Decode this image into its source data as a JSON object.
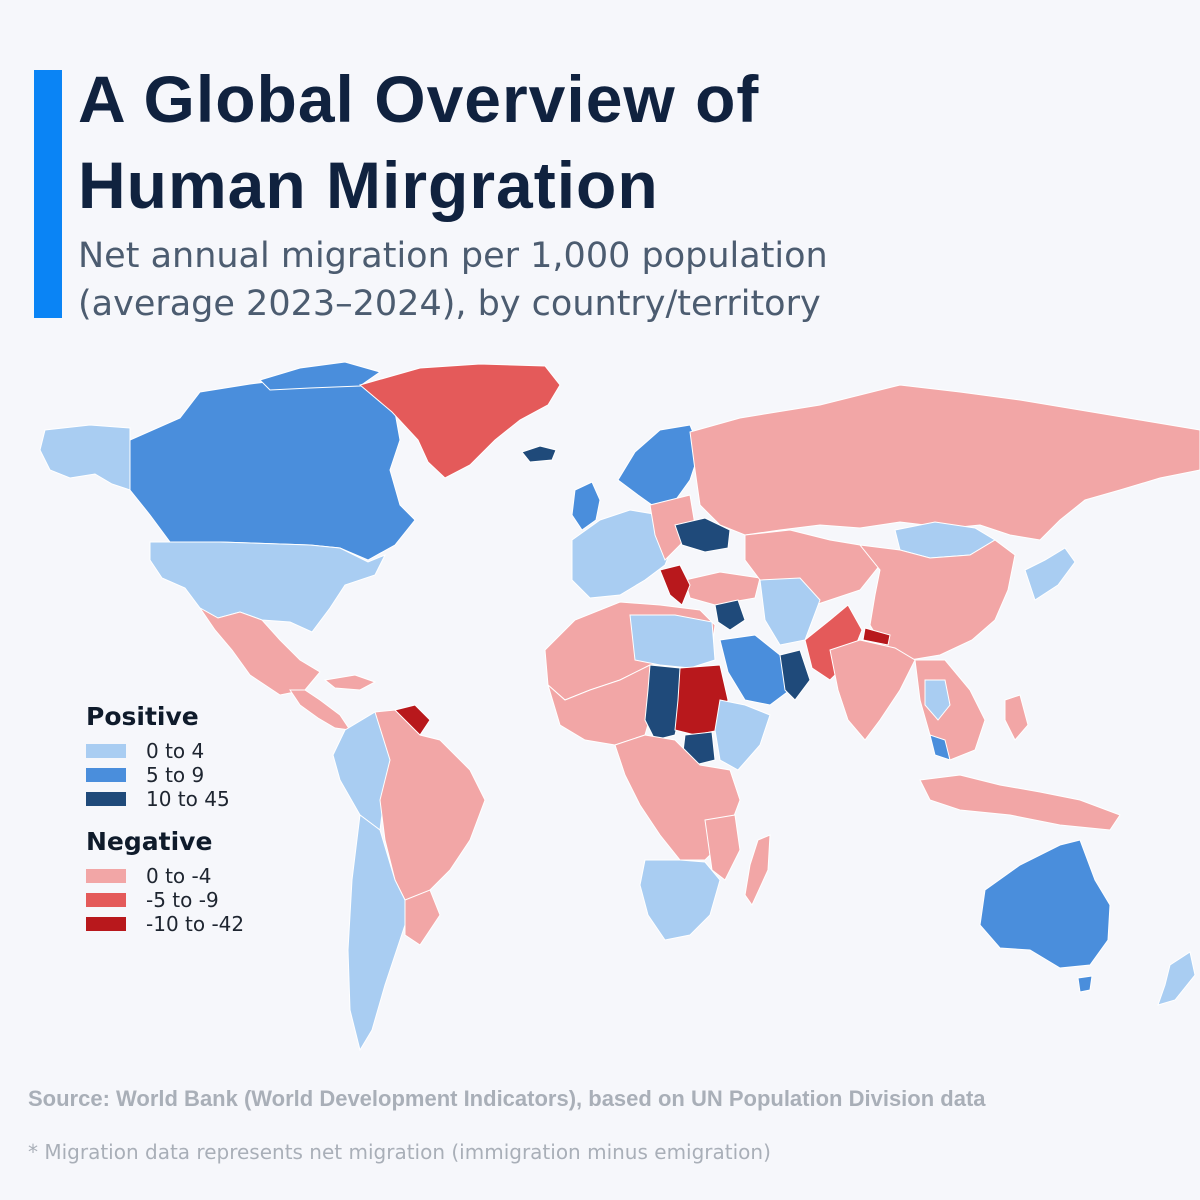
{
  "header": {
    "title_line1": "A Global Overview of",
    "title_line2": "Human Mirgration",
    "subtitle_line1": "Net annual migration per 1,000 population",
    "subtitle_line2": "(average 2023–2024), by country/territory"
  },
  "colors": {
    "accent": "#0a84f5",
    "pos_low": "#a9cdf2",
    "pos_mid": "#4a8edc",
    "pos_high": "#1f4a7a",
    "neg_low": "#f2a6a6",
    "neg_mid": "#e45a5a",
    "neg_high": "#b8181c"
  },
  "legend": {
    "positive_heading": "Positive",
    "positive": [
      {
        "label": "0 to 4",
        "color": "#a9cdf2"
      },
      {
        "label": "5 to 9",
        "color": "#4a8edc"
      },
      {
        "label": "10 to 45",
        "color": "#1f4a7a"
      }
    ],
    "negative_heading": "Negative",
    "negative": [
      {
        "label": "0 to -4",
        "color": "#f2a6a6"
      },
      {
        "label": "-5 to -9",
        "color": "#e45a5a"
      },
      {
        "label": "-10 to -42",
        "color": "#b8181c"
      }
    ]
  },
  "footer": {
    "source": "Source: World Bank (World Development Indicators), based on UN Population Division data",
    "footnote": "*  Migration data represents net migration (immigration minus emigration)"
  }
}
